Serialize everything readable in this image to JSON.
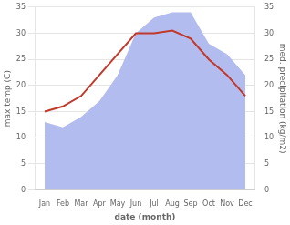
{
  "chart_data": {
    "type": "line",
    "categories": [
      "Jan",
      "Feb",
      "Mar",
      "Apr",
      "May",
      "Jun",
      "Jul",
      "Aug",
      "Sep",
      "Oct",
      "Nov",
      "Dec"
    ],
    "xlabel": "date (month)",
    "ylabel": "max temp (C)",
    "y2label": "med. precipitation (kg/m2)",
    "series": [
      {
        "type": "area",
        "color": "#b3bcee",
        "axis": "y2",
        "values": [
          13,
          12,
          14,
          17,
          22,
          30,
          33,
          34,
          34,
          28,
          26,
          22
        ]
      },
      {
        "type": "line",
        "color": "#c0392b",
        "values": [
          15,
          16,
          18,
          22,
          26,
          30,
          30,
          30.5,
          29,
          25,
          22,
          18
        ]
      }
    ],
    "ylim": [
      0,
      35
    ],
    "yticks": [
      0,
      5,
      10,
      15,
      20,
      25,
      30,
      35
    ],
    "y2lim": [
      0,
      35
    ],
    "y2ticks": [
      0,
      5,
      10,
      15,
      20,
      25,
      30,
      35
    ],
    "grid": true
  }
}
